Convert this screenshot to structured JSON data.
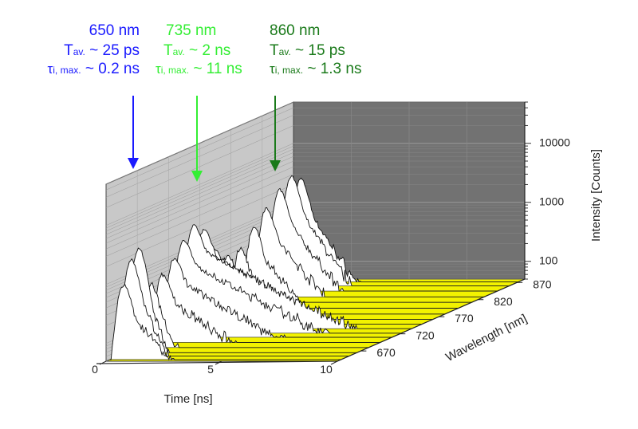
{
  "annotations": [
    {
      "wavelength": "650 nm",
      "tav_label": "T",
      "tav_sub": "av.",
      "tav_value": " ~ 25 ps",
      "tau_label": "τ",
      "tau_sub": "i, max.",
      "tau_value": " ~ 0.2 ns",
      "color": "#1a1aff",
      "target_wavelength": 650
    },
    {
      "wavelength": "735 nm",
      "tav_label": "T",
      "tav_sub": "av.",
      "tav_value": " ~ 2 ns",
      "tau_label": "τ",
      "tau_sub": "i, max.",
      "tau_value": " ~ 11 ns",
      "color": "#33ee33",
      "target_wavelength": 735
    },
    {
      "wavelength": "860 nm",
      "tav_label": "T",
      "tav_sub": "av.",
      "tav_value": " ~ 15 ps",
      "tau_label": "τ",
      "tau_sub": "i, max.",
      "tau_value": " ~ 1.3 ns",
      "color": "#1a7a1a",
      "target_wavelength": 860
    }
  ],
  "chart_data": {
    "type": "3d-waterfall",
    "xlabel": "Time [ns]",
    "ylabel": "Wavelength [nm]",
    "zlabel": "Intensity [Counts]",
    "x_ticks": [
      "0",
      "5",
      "10"
    ],
    "y_ticks": [
      "670",
      "720",
      "770",
      "820",
      "870"
    ],
    "z_ticks": [
      "100",
      "1000",
      "10000"
    ],
    "xlim": [
      0,
      10
    ],
    "ylim": [
      640,
      880
    ],
    "zlim": [
      50,
      50000
    ],
    "z_scale": "log",
    "grid": true,
    "colors": {
      "floor": "#f2f200",
      "back_wall": "#727272",
      "side_wall": "#c8c8c8",
      "curve_fill": "#ffffff"
    },
    "series": [
      {
        "wavelength": 645,
        "peak_time": 0.6,
        "peak_counts": 900,
        "tau_ns": 0.9
      },
      {
        "wavelength": 655,
        "peak_time": 0.6,
        "peak_counts": 2200,
        "tau_ns": 0.5
      },
      {
        "wavelength": 665,
        "peak_time": 0.6,
        "peak_counts": 3000,
        "tau_ns": 0.35
      },
      {
        "wavelength": 680,
        "peak_time": 0.6,
        "peak_counts": 600,
        "tau_ns": 0.6
      },
      {
        "wavelength": 695,
        "peak_time": 0.6,
        "peak_counts": 700,
        "tau_ns": 1.4
      },
      {
        "wavelength": 710,
        "peak_time": 0.6,
        "peak_counts": 1100,
        "tau_ns": 1.8
      },
      {
        "wavelength": 722,
        "peak_time": 0.6,
        "peak_counts": 1900,
        "tau_ns": 2.0
      },
      {
        "wavelength": 735,
        "peak_time": 0.6,
        "peak_counts": 2800,
        "tau_ns": 2.0
      },
      {
        "wavelength": 748,
        "peak_time": 0.6,
        "peak_counts": 2000,
        "tau_ns": 1.8
      },
      {
        "wavelength": 762,
        "peak_time": 0.6,
        "peak_counts": 800,
        "tau_ns": 1.5
      },
      {
        "wavelength": 778,
        "peak_time": 0.6,
        "peak_counts": 500,
        "tau_ns": 1.2
      },
      {
        "wavelength": 795,
        "peak_time": 0.6,
        "peak_counts": 500,
        "tau_ns": 1.0
      },
      {
        "wavelength": 812,
        "peak_time": 0.6,
        "peak_counts": 900,
        "tau_ns": 0.9
      },
      {
        "wavelength": 828,
        "peak_time": 0.6,
        "peak_counts": 1600,
        "tau_ns": 0.9
      },
      {
        "wavelength": 845,
        "peak_time": 0.6,
        "peak_counts": 2600,
        "tau_ns": 0.8
      },
      {
        "wavelength": 860,
        "peak_time": 0.6,
        "peak_counts": 3600,
        "tau_ns": 0.7
      },
      {
        "wavelength": 872,
        "peak_time": 0.6,
        "peak_counts": 2800,
        "tau_ns": 0.7
      }
    ]
  }
}
